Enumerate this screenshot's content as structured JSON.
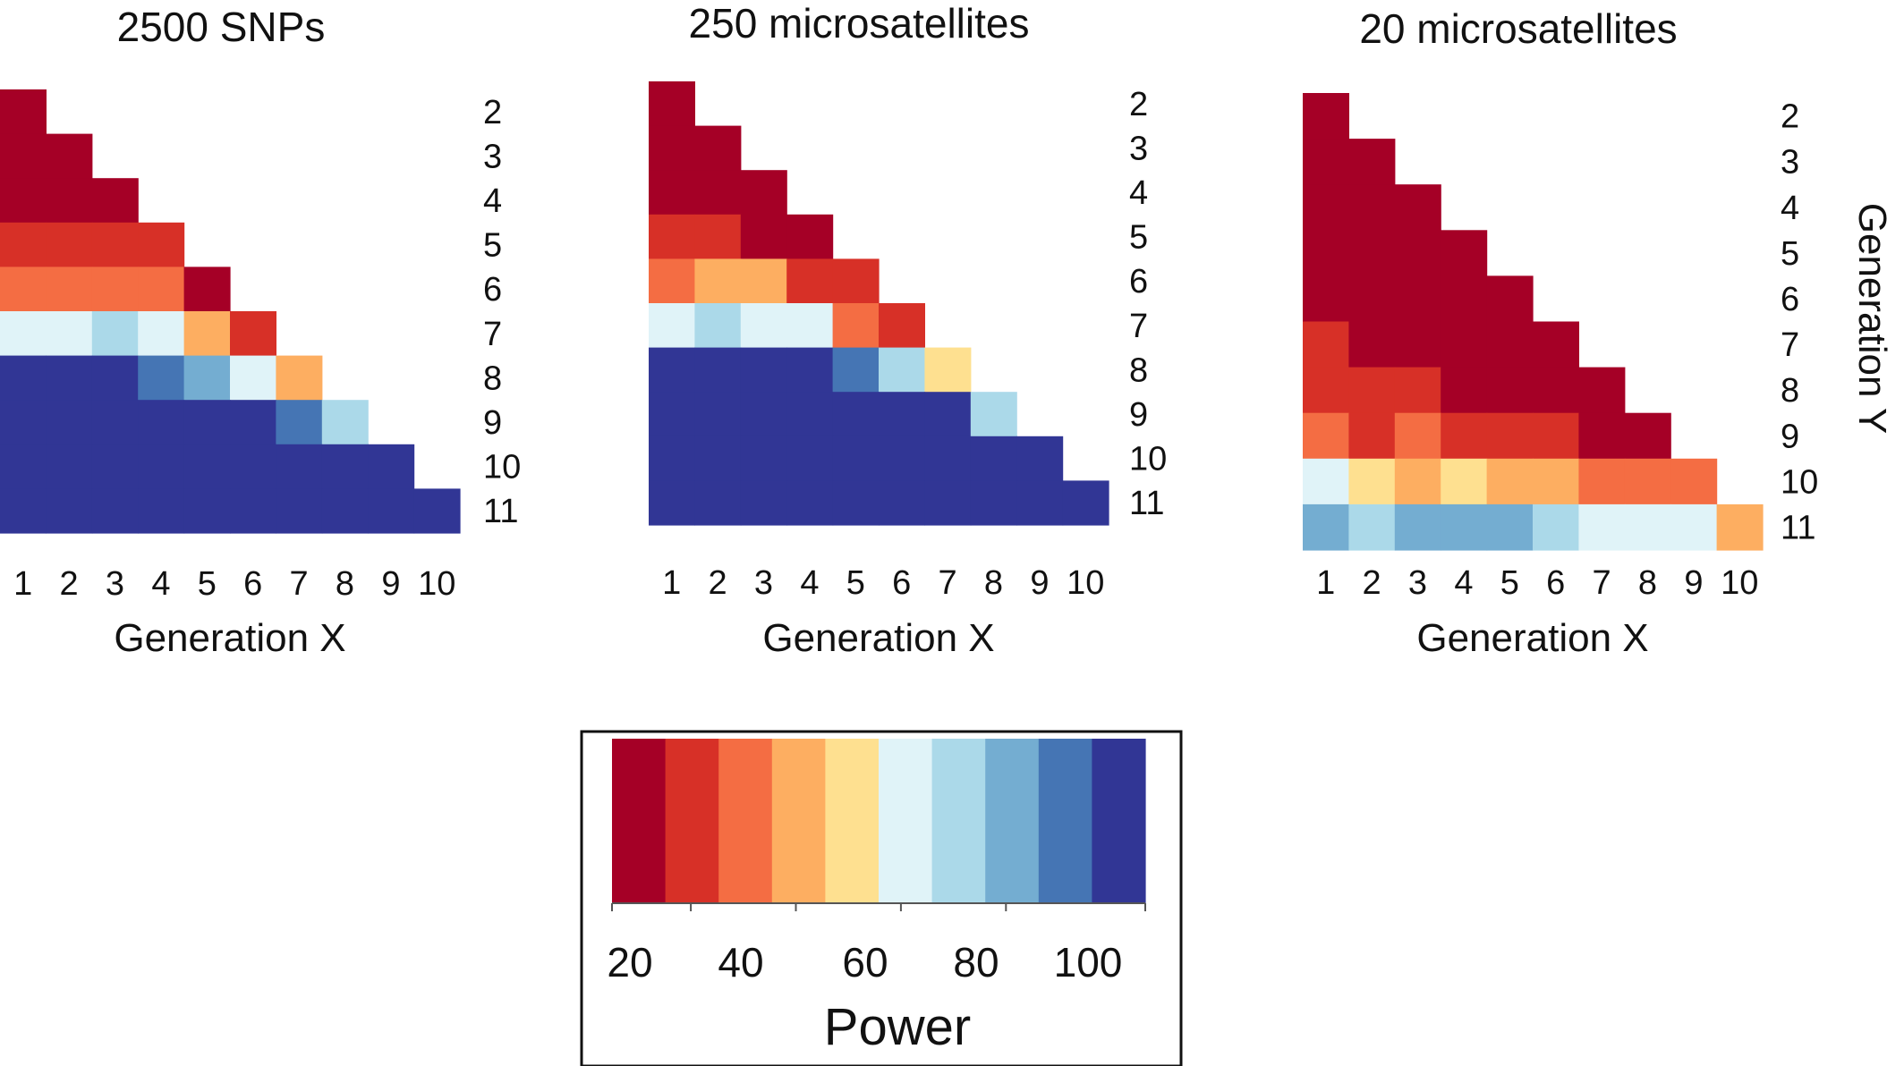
{
  "chart_data": [
    {
      "type": "heatmap",
      "title": "2500 SNPs",
      "xlabel": "Generation X",
      "ylabel": "",
      "x_ticks": [
        "1",
        "2",
        "3",
        "4",
        "5",
        "6",
        "7",
        "8",
        "9",
        "10"
      ],
      "y_ticks": [
        "2",
        "3",
        "4",
        "5",
        "6",
        "7",
        "8",
        "9",
        "10",
        "11"
      ],
      "value_unit": "colour class index (0 = lowest power, 9 = highest power)",
      "rows": [
        {
          "y": "2",
          "values": [
            0
          ]
        },
        {
          "y": "3",
          "values": [
            0,
            0
          ]
        },
        {
          "y": "4",
          "values": [
            0,
            0,
            0
          ]
        },
        {
          "y": "5",
          "values": [
            1,
            1,
            1,
            1
          ]
        },
        {
          "y": "6",
          "values": [
            2,
            2,
            2,
            2,
            0
          ]
        },
        {
          "y": "7",
          "values": [
            5,
            5,
            6,
            5,
            3,
            1
          ]
        },
        {
          "y": "8",
          "values": [
            9,
            9,
            9,
            8,
            7,
            5,
            3
          ]
        },
        {
          "y": "9",
          "values": [
            9,
            9,
            9,
            9,
            9,
            9,
            8,
            6
          ]
        },
        {
          "y": "10",
          "values": [
            9,
            9,
            9,
            9,
            9,
            9,
            9,
            9,
            9
          ]
        },
        {
          "y": "11",
          "values": [
            9,
            9,
            9,
            9,
            9,
            9,
            9,
            9,
            9,
            9
          ]
        }
      ]
    },
    {
      "type": "heatmap",
      "title": "250 microsatellites",
      "xlabel": "Generation X",
      "ylabel": "",
      "x_ticks": [
        "1",
        "2",
        "3",
        "4",
        "5",
        "6",
        "7",
        "8",
        "9",
        "10"
      ],
      "y_ticks": [
        "2",
        "3",
        "4",
        "5",
        "6",
        "7",
        "8",
        "9",
        "10",
        "11"
      ],
      "value_unit": "colour class index (0 = lowest power, 9 = highest power)",
      "rows": [
        {
          "y": "2",
          "values": [
            0
          ]
        },
        {
          "y": "3",
          "values": [
            0,
            0
          ]
        },
        {
          "y": "4",
          "values": [
            0,
            0,
            0
          ]
        },
        {
          "y": "5",
          "values": [
            1,
            1,
            0,
            0
          ]
        },
        {
          "y": "6",
          "values": [
            2,
            3,
            3,
            1,
            1
          ]
        },
        {
          "y": "7",
          "values": [
            5,
            6,
            5,
            5,
            2,
            1
          ]
        },
        {
          "y": "8",
          "values": [
            9,
            9,
            9,
            9,
            8,
            6,
            4
          ]
        },
        {
          "y": "9",
          "values": [
            9,
            9,
            9,
            9,
            9,
            9,
            9,
            6
          ]
        },
        {
          "y": "10",
          "values": [
            9,
            9,
            9,
            9,
            9,
            9,
            9,
            9,
            9
          ]
        },
        {
          "y": "11",
          "values": [
            9,
            9,
            9,
            9,
            9,
            9,
            9,
            9,
            9,
            9
          ]
        }
      ]
    },
    {
      "type": "heatmap",
      "title": "20 microsatellites",
      "xlabel": "Generation X",
      "ylabel": "Generation Y",
      "x_ticks": [
        "1",
        "2",
        "3",
        "4",
        "5",
        "6",
        "7",
        "8",
        "9",
        "10"
      ],
      "y_ticks": [
        "2",
        "3",
        "4",
        "5",
        "6",
        "7",
        "8",
        "9",
        "10",
        "11"
      ],
      "value_unit": "colour class index (0 = lowest power, 9 = highest power)",
      "rows": [
        {
          "y": "2",
          "values": [
            0
          ]
        },
        {
          "y": "3",
          "values": [
            0,
            0
          ]
        },
        {
          "y": "4",
          "values": [
            0,
            0,
            0
          ]
        },
        {
          "y": "5",
          "values": [
            0,
            0,
            0,
            0
          ]
        },
        {
          "y": "6",
          "values": [
            0,
            0,
            0,
            0,
            0
          ]
        },
        {
          "y": "7",
          "values": [
            1,
            0,
            0,
            0,
            0,
            0
          ]
        },
        {
          "y": "8",
          "values": [
            1,
            1,
            1,
            0,
            0,
            0,
            0
          ]
        },
        {
          "y": "9",
          "values": [
            2,
            1,
            2,
            1,
            1,
            1,
            0,
            0
          ]
        },
        {
          "y": "10",
          "values": [
            5,
            4,
            3,
            4,
            3,
            3,
            2,
            2,
            2
          ]
        },
        {
          "y": "11",
          "values": [
            7,
            6,
            7,
            7,
            7,
            6,
            5,
            5,
            5,
            3
          ]
        }
      ]
    }
  ],
  "legend": {
    "title": "Power",
    "tick_labels": [
      "20",
      "40",
      "60",
      "80",
      "100"
    ],
    "palette": [
      "#a50026",
      "#d73027",
      "#f46d43",
      "#fdae61",
      "#fee090",
      "#e0f3f8",
      "#abd9e9",
      "#74add1",
      "#4575b4",
      "#313695"
    ]
  }
}
